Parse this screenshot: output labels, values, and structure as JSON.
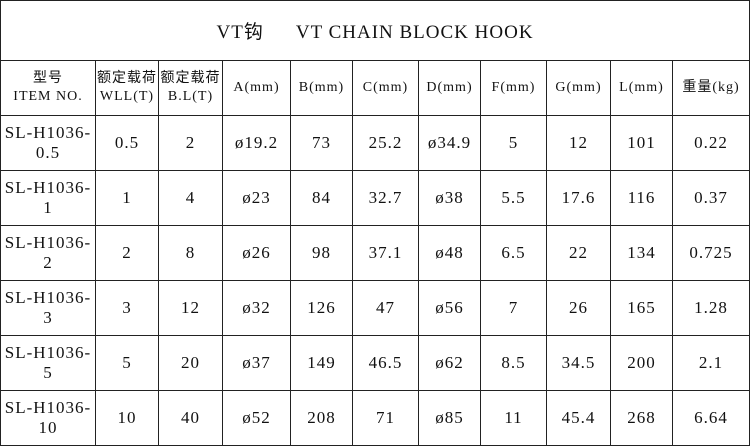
{
  "header": {
    "title": [
      "VT钩",
      "VT CHAIN BLOCK HOOK"
    ]
  },
  "table": {
    "columns": [
      [
        "型号",
        "ITEM NO."
      ],
      [
        "额定载荷",
        "WLL(T)"
      ],
      [
        "额定载荷",
        "B.L(T)"
      ],
      [
        "A(mm)"
      ],
      [
        "B(mm)"
      ],
      [
        "C(mm)"
      ],
      [
        "D(mm)"
      ],
      [
        "F(mm)"
      ],
      [
        "G(mm)"
      ],
      [
        "L(mm)"
      ],
      [
        "重量(kg)"
      ]
    ],
    "rows": [
      [
        "SL-H1036-0.5",
        "0.5",
        "2",
        "ø19.2",
        "73",
        "25.2",
        "ø34.9",
        "5",
        "12",
        "101",
        "0.22"
      ],
      [
        "SL-H1036-1",
        "1",
        "4",
        "ø23",
        "84",
        "32.7",
        "ø38",
        "5.5",
        "17.6",
        "116",
        "0.37"
      ],
      [
        "SL-H1036-2",
        "2",
        "8",
        "ø26",
        "98",
        "37.1",
        "ø48",
        "6.5",
        "22",
        "134",
        "0.725"
      ],
      [
        "SL-H1036-3",
        "3",
        "12",
        "ø32",
        "126",
        "47",
        "ø56",
        "7",
        "26",
        "165",
        "1.28"
      ],
      [
        "SL-H1036-5",
        "5",
        "20",
        "ø37",
        "149",
        "46.5",
        "ø62",
        "8.5",
        "34.5",
        "200",
        "2.1"
      ],
      [
        "SL-H1036-10",
        "10",
        "40",
        "ø52",
        "208",
        "71",
        "ø85",
        "11",
        "45.4",
        "268",
        "6.64"
      ]
    ]
  }
}
